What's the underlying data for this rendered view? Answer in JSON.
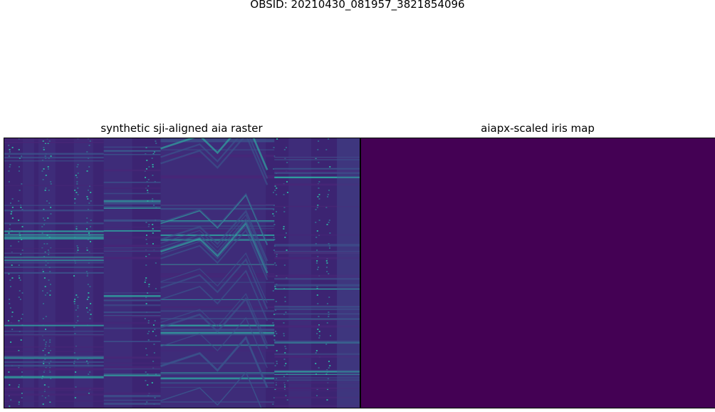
{
  "suptitle": "OBSID: 20210430_081957_3821854096",
  "chart_data": [
    {
      "type": "heatmap",
      "title": "synthetic sji-aligned aia raster",
      "xlabel": "",
      "ylabel": "",
      "colormap": "viridis",
      "axes_visible": false,
      "grid": false,
      "background_color": "#3e2c79",
      "bright_feature_color": "#2fa6a0"
    },
    {
      "type": "heatmap",
      "title": "aiapx-scaled iris map",
      "xlabel": "",
      "ylabel": "",
      "colormap": "viridis",
      "axes_visible": false,
      "grid": false,
      "background_color": "#440154",
      "note": "uniform field at colormap minimum"
    }
  ]
}
